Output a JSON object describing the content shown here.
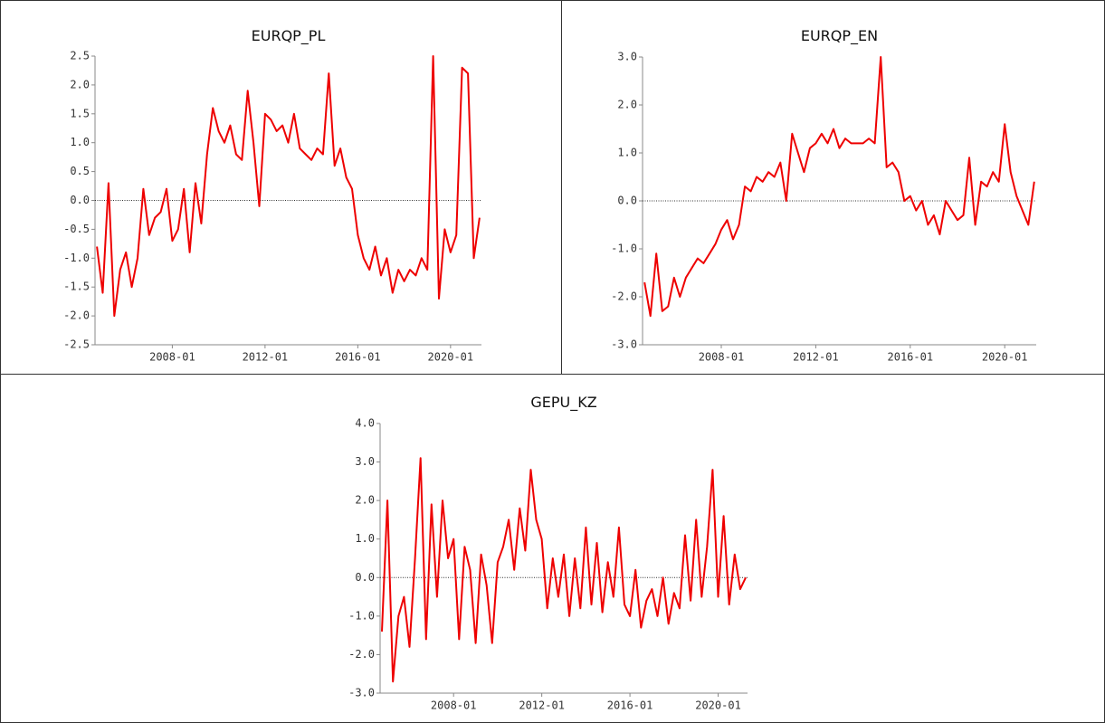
{
  "chart_data": [
    {
      "type": "line",
      "title": "EURQP_PL",
      "color": "#ee0000",
      "x": [
        "2004-10",
        "2005-01",
        "2005-04",
        "2005-07",
        "2005-10",
        "2006-01",
        "2006-04",
        "2006-07",
        "2006-10",
        "2007-01",
        "2007-04",
        "2007-07",
        "2007-10",
        "2008-01",
        "2008-04",
        "2008-07",
        "2008-10",
        "2009-01",
        "2009-04",
        "2009-07",
        "2009-10",
        "2010-01",
        "2010-04",
        "2010-07",
        "2010-10",
        "2011-01",
        "2011-04",
        "2011-07",
        "2011-10",
        "2012-01",
        "2012-04",
        "2012-07",
        "2012-10",
        "2013-01",
        "2013-04",
        "2013-07",
        "2013-10",
        "2014-01",
        "2014-04",
        "2014-07",
        "2014-10",
        "2015-01",
        "2015-04",
        "2015-07",
        "2015-10",
        "2016-01",
        "2016-04",
        "2016-07",
        "2016-10",
        "2017-01",
        "2017-04",
        "2017-07",
        "2017-10",
        "2018-01",
        "2018-04",
        "2018-07",
        "2018-10",
        "2019-01",
        "2019-04",
        "2019-07",
        "2019-10",
        "2020-01",
        "2020-04",
        "2020-07",
        "2020-10",
        "2021-01",
        "2021-04"
      ],
      "values": [
        -0.8,
        -1.6,
        0.3,
        -2.0,
        -1.2,
        -0.9,
        -1.5,
        -1.0,
        0.2,
        -0.6,
        -0.3,
        -0.2,
        0.2,
        -0.7,
        -0.5,
        0.2,
        -0.9,
        0.3,
        -0.4,
        0.8,
        1.6,
        1.2,
        1.0,
        1.3,
        0.8,
        0.7,
        1.9,
        1.0,
        -0.1,
        1.5,
        1.4,
        1.2,
        1.3,
        1.0,
        1.5,
        0.9,
        0.8,
        0.7,
        0.9,
        0.8,
        2.2,
        0.6,
        0.9,
        0.4,
        0.2,
        -0.6,
        -1.0,
        -1.2,
        -0.8,
        -1.3,
        -1.0,
        -1.6,
        -1.2,
        -1.4,
        -1.2,
        -1.3,
        -1.0,
        -1.2,
        2.5,
        -1.7,
        -0.5,
        -0.9,
        -0.6,
        2.3,
        2.2,
        -1.0,
        -0.3
      ],
      "xlim": [
        "2004-09",
        "2021-05"
      ],
      "xticks": [
        "2008-01",
        "2012-01",
        "2016-01",
        "2020-01"
      ],
      "ylim": [
        -2.5,
        2.5
      ],
      "yticks": [
        {
          "value": -2.5,
          "label": "-2.5"
        },
        {
          "value": -2,
          "label": "-2.0"
        },
        {
          "value": -1.5,
          "label": "-1.5"
        },
        {
          "value": -1,
          "label": "-1.0"
        },
        {
          "value": -0.5,
          "label": "-0.5"
        },
        {
          "value": 0,
          "label": "0.0"
        },
        {
          "value": 0.5,
          "label": "0.5"
        },
        {
          "value": 1,
          "label": "1.0"
        },
        {
          "value": 1.5,
          "label": "1.5"
        },
        {
          "value": 2,
          "label": "2.0"
        },
        {
          "value": 2.5,
          "label": "2.5"
        }
      ]
    },
    {
      "type": "line",
      "title": "EURQP_EN",
      "color": "#ee0000",
      "x": [
        "2004-10",
        "2005-01",
        "2005-04",
        "2005-07",
        "2005-10",
        "2006-01",
        "2006-04",
        "2006-07",
        "2006-10",
        "2007-01",
        "2007-04",
        "2007-07",
        "2007-10",
        "2008-01",
        "2008-04",
        "2008-07",
        "2008-10",
        "2009-01",
        "2009-04",
        "2009-07",
        "2009-10",
        "2010-01",
        "2010-04",
        "2010-07",
        "2010-10",
        "2011-01",
        "2011-04",
        "2011-07",
        "2011-10",
        "2012-01",
        "2012-04",
        "2012-07",
        "2012-10",
        "2013-01",
        "2013-04",
        "2013-07",
        "2013-10",
        "2014-01",
        "2014-04",
        "2014-07",
        "2014-10",
        "2015-01",
        "2015-04",
        "2015-07",
        "2015-10",
        "2016-01",
        "2016-04",
        "2016-07",
        "2016-10",
        "2017-01",
        "2017-04",
        "2017-07",
        "2017-10",
        "2018-01",
        "2018-04",
        "2018-07",
        "2018-10",
        "2019-01",
        "2019-04",
        "2019-07",
        "2019-10",
        "2020-01",
        "2020-04",
        "2020-07",
        "2020-10",
        "2021-01",
        "2021-04"
      ],
      "values": [
        -1.7,
        -2.4,
        -1.1,
        -2.3,
        -2.2,
        -1.6,
        -2.0,
        -1.6,
        -1.4,
        -1.2,
        -1.3,
        -1.1,
        -0.9,
        -0.6,
        -0.4,
        -0.8,
        -0.5,
        0.3,
        0.2,
        0.5,
        0.4,
        0.6,
        0.5,
        0.8,
        0.0,
        1.4,
        1.0,
        0.6,
        1.1,
        1.2,
        1.4,
        1.2,
        1.5,
        1.1,
        1.3,
        1.2,
        1.2,
        1.2,
        1.3,
        1.2,
        3.0,
        0.7,
        0.8,
        0.6,
        0.0,
        0.1,
        -0.2,
        0.0,
        -0.5,
        -0.3,
        -0.7,
        0.0,
        -0.2,
        -0.4,
        -0.3,
        0.9,
        -0.5,
        0.4,
        0.3,
        0.6,
        0.4,
        1.6,
        0.6,
        0.1,
        -0.2,
        -0.5,
        0.4
      ],
      "xlim": [
        "2004-09",
        "2021-05"
      ],
      "xticks": [
        "2008-01",
        "2012-01",
        "2016-01",
        "2020-01"
      ],
      "ylim": [
        -3,
        3
      ],
      "yticks": [
        {
          "value": -3,
          "label": "-3.0"
        },
        {
          "value": -2,
          "label": "-2.0"
        },
        {
          "value": -1,
          "label": "-1.0"
        },
        {
          "value": 0,
          "label": "0.0"
        },
        {
          "value": 1,
          "label": "1.0"
        },
        {
          "value": 2,
          "label": "2.0"
        },
        {
          "value": 3,
          "label": "3.0"
        }
      ]
    },
    {
      "type": "line",
      "title": "GEPU_KZ",
      "color": "#ee0000",
      "x": [
        "2004-10",
        "2005-01",
        "2005-04",
        "2005-07",
        "2005-10",
        "2006-01",
        "2006-04",
        "2006-07",
        "2006-10",
        "2007-01",
        "2007-04",
        "2007-07",
        "2007-10",
        "2008-01",
        "2008-04",
        "2008-07",
        "2008-10",
        "2009-01",
        "2009-04",
        "2009-07",
        "2009-10",
        "2010-01",
        "2010-04",
        "2010-07",
        "2010-10",
        "2011-01",
        "2011-04",
        "2011-07",
        "2011-10",
        "2012-01",
        "2012-04",
        "2012-07",
        "2012-10",
        "2013-01",
        "2013-04",
        "2013-07",
        "2013-10",
        "2014-01",
        "2014-04",
        "2014-07",
        "2014-10",
        "2015-01",
        "2015-04",
        "2015-07",
        "2015-10",
        "2016-01",
        "2016-04",
        "2016-07",
        "2016-10",
        "2017-01",
        "2017-04",
        "2017-07",
        "2017-10",
        "2018-01",
        "2018-04",
        "2018-07",
        "2018-10",
        "2019-01",
        "2019-04",
        "2019-07",
        "2019-10",
        "2020-01",
        "2020-04",
        "2020-07",
        "2020-10",
        "2021-01",
        "2021-04"
      ],
      "values": [
        -1.4,
        2.0,
        -2.7,
        -1.0,
        -0.5,
        -1.8,
        0.5,
        3.1,
        -1.6,
        1.9,
        -0.5,
        2.0,
        0.5,
        1.0,
        -1.6,
        0.8,
        0.2,
        -1.7,
        0.6,
        -0.2,
        -1.7,
        0.4,
        0.8,
        1.5,
        0.2,
        1.8,
        0.7,
        2.8,
        1.5,
        1.0,
        -0.8,
        0.5,
        -0.5,
        0.6,
        -1.0,
        0.5,
        -0.8,
        1.3,
        -0.7,
        0.9,
        -0.9,
        0.4,
        -0.5,
        1.3,
        -0.7,
        -1.0,
        0.2,
        -1.3,
        -0.6,
        -0.3,
        -1.0,
        0.0,
        -1.2,
        -0.4,
        -0.8,
        1.1,
        -0.6,
        1.5,
        -0.5,
        0.8,
        2.8,
        -0.5,
        1.6,
        -0.7,
        0.6,
        -0.3,
        0.0
      ],
      "xlim": [
        "2004-09",
        "2021-05"
      ],
      "xticks": [
        "2008-01",
        "2012-01",
        "2016-01",
        "2020-01"
      ],
      "ylim": [
        -3,
        4
      ],
      "yticks": [
        {
          "value": -3,
          "label": "-3.0"
        },
        {
          "value": -2,
          "label": "-2.0"
        },
        {
          "value": -1,
          "label": "-1.0"
        },
        {
          "value": 0,
          "label": "0.0"
        },
        {
          "value": 1,
          "label": "1.0"
        },
        {
          "value": 2,
          "label": "2.0"
        },
        {
          "value": 3,
          "label": "3.0"
        },
        {
          "value": 4,
          "label": "4.0"
        }
      ]
    }
  ]
}
